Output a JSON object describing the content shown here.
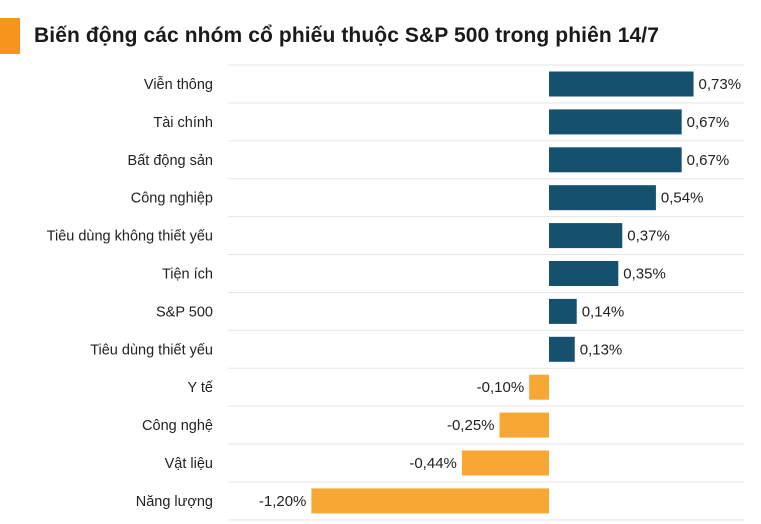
{
  "title": "Biến động các nhóm cổ phiếu thuộc S&P 500 trong phiên 14/7",
  "colors": {
    "accent": "#f7941d",
    "positive": "#15506f",
    "negative": "#f7a734",
    "grid": "#e6e6e6"
  },
  "chart_data": {
    "type": "bar",
    "orientation": "horizontal",
    "title": "Biến động các nhóm cổ phiếu thuộc S&P 500 trong phiên 14/7",
    "categories": [
      "Viễn thông",
      "Tài chính",
      "Bất động sản",
      "Công nghiệp",
      "Tiêu dùng không thiết yếu",
      "Tiện ích",
      "S&P 500",
      "Tiêu dùng thiết yếu",
      "Y tế",
      "Công nghệ",
      "Vật liệu",
      "Năng lượng"
    ],
    "values": [
      0.73,
      0.67,
      0.67,
      0.54,
      0.37,
      0.35,
      0.14,
      0.13,
      -0.1,
      -0.25,
      -0.44,
      -1.2
    ],
    "value_labels": [
      "0,73%",
      "0,67%",
      "0,67%",
      "0,54%",
      "0,37%",
      "0,35%",
      "0,14%",
      "0,13%",
      "-0,10%",
      "-0,25%",
      "-0,44%",
      "-1,20%"
    ],
    "xlim": [
      -1.2,
      0.9
    ],
    "grid": true,
    "xlabel": "",
    "ylabel": ""
  }
}
